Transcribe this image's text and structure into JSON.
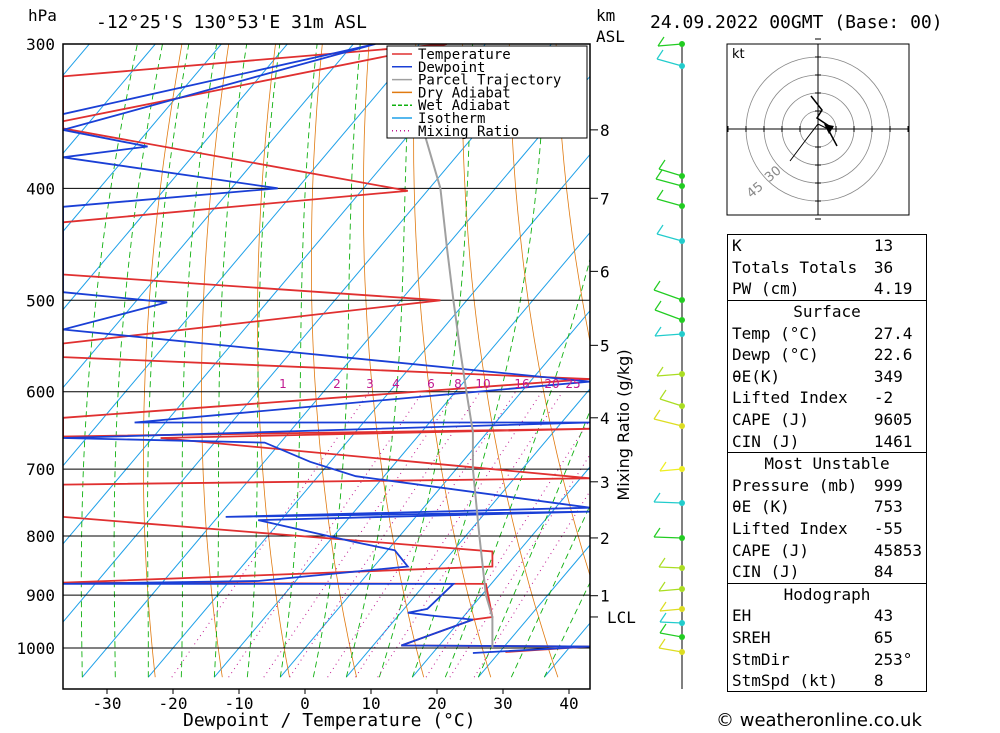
{
  "header": {
    "units_left": "hPa",
    "location": "-12°25'S 130°53'E 31m ASL",
    "units_km": "km",
    "units_asl": "ASL",
    "datetime": "24.09.2022 00GMT (Base: 00)"
  },
  "footer": {
    "copyright": "© weatheronline.co.uk"
  },
  "legend": {
    "items": [
      {
        "label": "Temperature",
        "color": "#e03030"
      },
      {
        "label": "Dewpoint",
        "color": "#1a3fd6"
      },
      {
        "label": "Parcel Trajectory",
        "color": "#a0a0a0"
      },
      {
        "label": "Dry Adiabat",
        "color": "#e07a10"
      },
      {
        "label": "Wet Adiabat",
        "color": "#10b010"
      },
      {
        "label": "Isotherm",
        "color": "#1ea0e8"
      },
      {
        "label": "Mixing Ratio",
        "color": "#c01890"
      }
    ]
  },
  "chart_data": {
    "type": "line",
    "xlabel": "Dewpoint / Temperature (°C)",
    "y_right_label": "Mixing Ratio (g/kg)",
    "x_ticks": [
      -30,
      -20,
      -10,
      0,
      10,
      20,
      30,
      40
    ],
    "y_ticks_hpa": [
      300,
      400,
      500,
      600,
      700,
      800,
      900,
      1000
    ],
    "xlim": [
      -38,
      43
    ],
    "ylim_hpa": [
      1050,
      300
    ],
    "y_scale": "log",
    "km_ticks": [
      {
        "label": "8",
        "p": 356
      },
      {
        "label": "7",
        "p": 408
      },
      {
        "label": "6",
        "p": 472
      },
      {
        "label": "5",
        "p": 547
      },
      {
        "label": "4",
        "p": 632
      },
      {
        "label": "3",
        "p": 718
      },
      {
        "label": "2",
        "p": 803
      },
      {
        "label": "1",
        "p": 901
      },
      {
        "label": "LCL",
        "p": 940
      }
    ],
    "mixing_ratio_labels": [
      "1",
      "2",
      "3",
      "4",
      "6",
      "8",
      "10",
      "16",
      "20",
      "25"
    ],
    "series": [
      {
        "name": "Temperature",
        "points": [
          [
            -38,
            350
          ],
          [
            21,
            300
          ],
          [
            -38,
            320
          ],
          [
            -38,
            355
          ],
          [
            15,
            402
          ],
          [
            -38,
            428
          ],
          [
            -38,
            475
          ],
          [
            20,
            500
          ],
          [
            -38,
            545
          ],
          [
            -38,
            560
          ],
          [
            43,
            585
          ],
          [
            -38,
            632
          ],
          [
            -38,
            656
          ],
          [
            43,
            646
          ],
          [
            -23,
            658
          ],
          [
            43,
            713
          ],
          [
            -38,
            722
          ],
          [
            -38,
            770
          ],
          [
            28,
            825
          ],
          [
            28,
            850
          ],
          [
            -38,
            878
          ],
          [
            27,
            880
          ],
          [
            28,
            940
          ],
          [
            25,
            945
          ],
          [
            14,
            995
          ],
          [
            43,
            997
          ],
          [
            30,
            1008
          ]
        ]
      },
      {
        "name": "Dewpoint",
        "points": [
          [
            -38,
            345
          ],
          [
            10,
            300
          ],
          [
            -38,
            356
          ],
          [
            -25,
            368
          ],
          [
            -38,
            376
          ],
          [
            -5,
            400
          ],
          [
            -38,
            415
          ],
          [
            -38,
            492
          ],
          [
            -22,
            502
          ],
          [
            -38,
            530
          ],
          [
            43,
            588
          ],
          [
            -27,
            638
          ],
          [
            43,
            638
          ],
          [
            -38,
            658
          ],
          [
            -7,
            664
          ],
          [
            0,
            690
          ],
          [
            7,
            710
          ],
          [
            43,
            756
          ],
          [
            -13,
            770
          ],
          [
            43,
            762
          ],
          [
            -8,
            775
          ],
          [
            7,
            810
          ],
          [
            13,
            823
          ],
          [
            15,
            850
          ],
          [
            -8,
            875
          ],
          [
            -38,
            880
          ],
          [
            22,
            880
          ],
          [
            18,
            925
          ],
          [
            15,
            932
          ],
          [
            19,
            938
          ],
          [
            25,
            945
          ],
          [
            14,
            995
          ],
          [
            43,
            997
          ],
          [
            25,
            1010
          ]
        ]
      },
      {
        "name": "Parcel Trajectory",
        "points": [
          [
            17,
            350
          ],
          [
            20,
            400
          ],
          [
            21,
            450
          ],
          [
            22,
            500
          ],
          [
            23,
            550
          ],
          [
            24,
            600
          ],
          [
            25,
            650
          ],
          [
            25,
            700
          ],
          [
            26,
            800
          ],
          [
            27,
            900
          ],
          [
            28,
            940
          ],
          [
            28,
            1000
          ]
        ]
      }
    ]
  },
  "hodograph": {
    "unit": "kt",
    "ring_labels": [
      "45",
      "30"
    ]
  },
  "indices": {
    "general": [
      {
        "label": "K",
        "value": "13"
      },
      {
        "label": "Totals Totals",
        "value": "36"
      },
      {
        "label": "PW (cm)",
        "value": "4.19"
      }
    ],
    "surface_title": "Surface",
    "surface": [
      {
        "label": "Temp (°C)",
        "value": "27.4"
      },
      {
        "label": "Dewp (°C)",
        "value": "22.6"
      },
      {
        "label": "θE(K)",
        "value": "349"
      },
      {
        "label": "Lifted Index",
        "value": "-2"
      },
      {
        "label": "CAPE (J)",
        "value": "9605"
      },
      {
        "label": "CIN (J)",
        "value": "1461"
      }
    ],
    "most_unstable_title": "Most Unstable",
    "most_unstable": [
      {
        "label": "Pressure (mb)",
        "value": "999"
      },
      {
        "label": "θE (K)",
        "value": "753"
      },
      {
        "label": "Lifted Index",
        "value": "-55"
      },
      {
        "label": "CAPE (J)",
        "value": "45853"
      },
      {
        "label": "CIN (J)",
        "value": "84"
      }
    ],
    "hodograph_title": "Hodograph",
    "hodograph": [
      {
        "label": "EH",
        "value": "43"
      },
      {
        "label": "SREH",
        "value": "65"
      },
      {
        "label": "StmDir",
        "value": "253°"
      },
      {
        "label": "StmSpd (kt)",
        "value": "8"
      }
    ]
  }
}
